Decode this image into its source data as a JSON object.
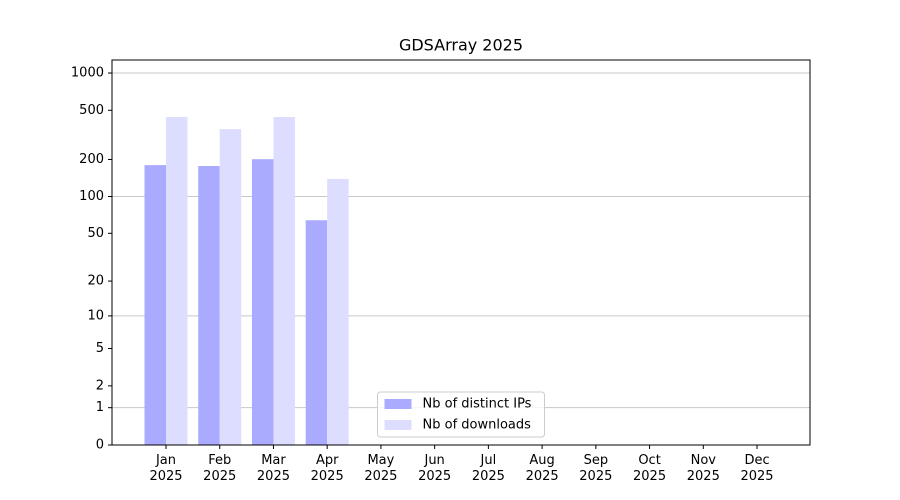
{
  "chart_data": {
    "type": "bar",
    "title": "GDSArray 2025",
    "categories": [
      "Jan\n2025",
      "Feb\n2025",
      "Mar\n2025",
      "Apr\n2025",
      "May\n2025",
      "Jun\n2025",
      "Jul\n2025",
      "Aug\n2025",
      "Sep\n2025",
      "Oct\n2025",
      "Nov\n2025",
      "Dec\n2025"
    ],
    "series": [
      {
        "name": "Nb of distinct IPs",
        "color": "#aaaaff",
        "values": [
          180,
          177,
          201,
          64,
          0,
          0,
          0,
          0,
          0,
          0,
          0,
          0
        ]
      },
      {
        "name": "Nb of downloads",
        "color": "#ddddff",
        "values": [
          441,
          352,
          441,
          139,
          0,
          0,
          0,
          0,
          0,
          0,
          0,
          0
        ]
      }
    ],
    "yscale": "log1p",
    "ylim": [
      0,
      1274
    ],
    "yticks": [
      0,
      1,
      2,
      5,
      10,
      20,
      50,
      100,
      200,
      500,
      1000
    ],
    "grid": true,
    "legend": "lower center"
  }
}
